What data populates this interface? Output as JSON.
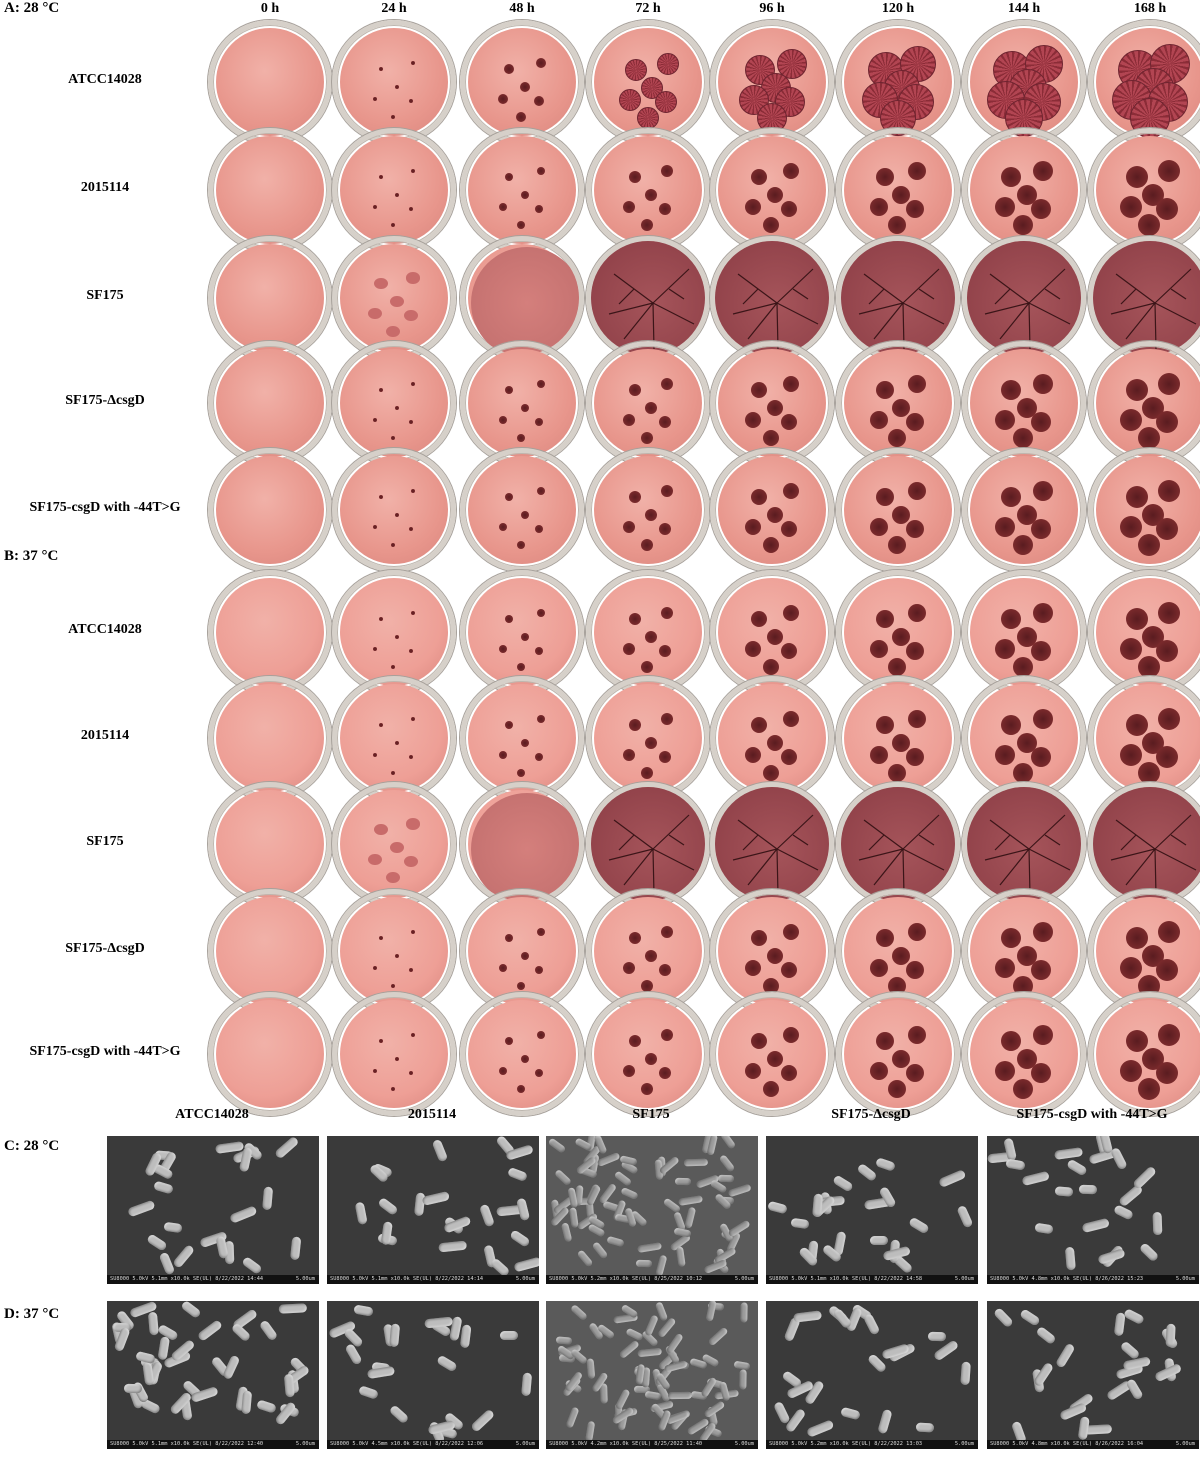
{
  "panels": {
    "A": "A: 28 °C",
    "B": "B: 37 °C",
    "C": "C: 28 °C",
    "D": "D: 37 °C"
  },
  "time_points": [
    "0 h",
    "24 h",
    "48 h",
    "72 h",
    "96 h",
    "120 h",
    "144 h",
    "168 h"
  ],
  "strains": [
    "ATCC14028",
    "2015114",
    "SF175",
    "SF175-ΔcsgD",
    "SF175-csgD with -44T>G"
  ],
  "sem_info": {
    "C": [
      "SU8000 5.0kV 5.1mm x10.0k SE(UL) 8/22/2022 14:44",
      "SU8000 5.0kV 5.1mm x10.0k SE(UL) 8/22/2022 14:14",
      "SU8000 5.0kV 5.2mm x10.0k SE(UL) 8/25/2022 10:12",
      "SU8000 5.0kV 5.1mm x10.0k SE(UL) 8/22/2022 14:58",
      "SU8000 5.0kV 4.8mm x10.0k SE(UL) 8/26/2022 15:23"
    ],
    "D": [
      "SU8000 5.0kV 5.1mm x10.0k SE(UL) 8/22/2022 12:40",
      "SU8000 5.0kV 4.5mm x10.0k SE(UL) 8/22/2022 12:06",
      "SU8000 5.0kV 4.2mm x10.0k SE(UL) 8/25/2022 11:40",
      "SU8000 5.0kV 5.2mm x10.0k SE(UL) 8/22/2022 13:03",
      "SU8000 5.0kV 4.8mm x10.0k SE(UL) 8/26/2022 16:04"
    ],
    "scale": "5.00um"
  },
  "colors": {
    "agar": "#e99b92",
    "colony": "#7a2a2c",
    "rim": "#d6d0c9"
  }
}
